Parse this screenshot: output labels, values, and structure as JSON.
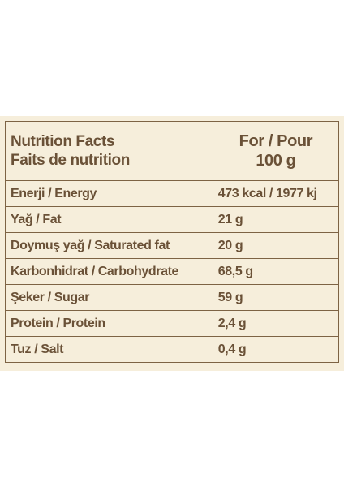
{
  "header": {
    "title_line1": "Nutrition Facts",
    "title_line2": "Faits de nutrition",
    "portion_line1": "For / Pour",
    "portion_line2": "100 g"
  },
  "rows": [
    {
      "name": "Enerji / Energy",
      "value": "473 kcal / 1977 kj"
    },
    {
      "name": "Yağ / Fat",
      "value": "21 g"
    },
    {
      "name": "Doymuş yağ / Saturated fat",
      "value": "20 g"
    },
    {
      "name": "Karbonhidrat / Carbohydrate",
      "value": "68,5 g"
    },
    {
      "name": "Şeker / Sugar",
      "value": "59 g"
    },
    {
      "name": "Protein / Protein",
      "value": "2,4 g"
    },
    {
      "name": "Tuz / Salt",
      "value": "0,4 g"
    }
  ]
}
